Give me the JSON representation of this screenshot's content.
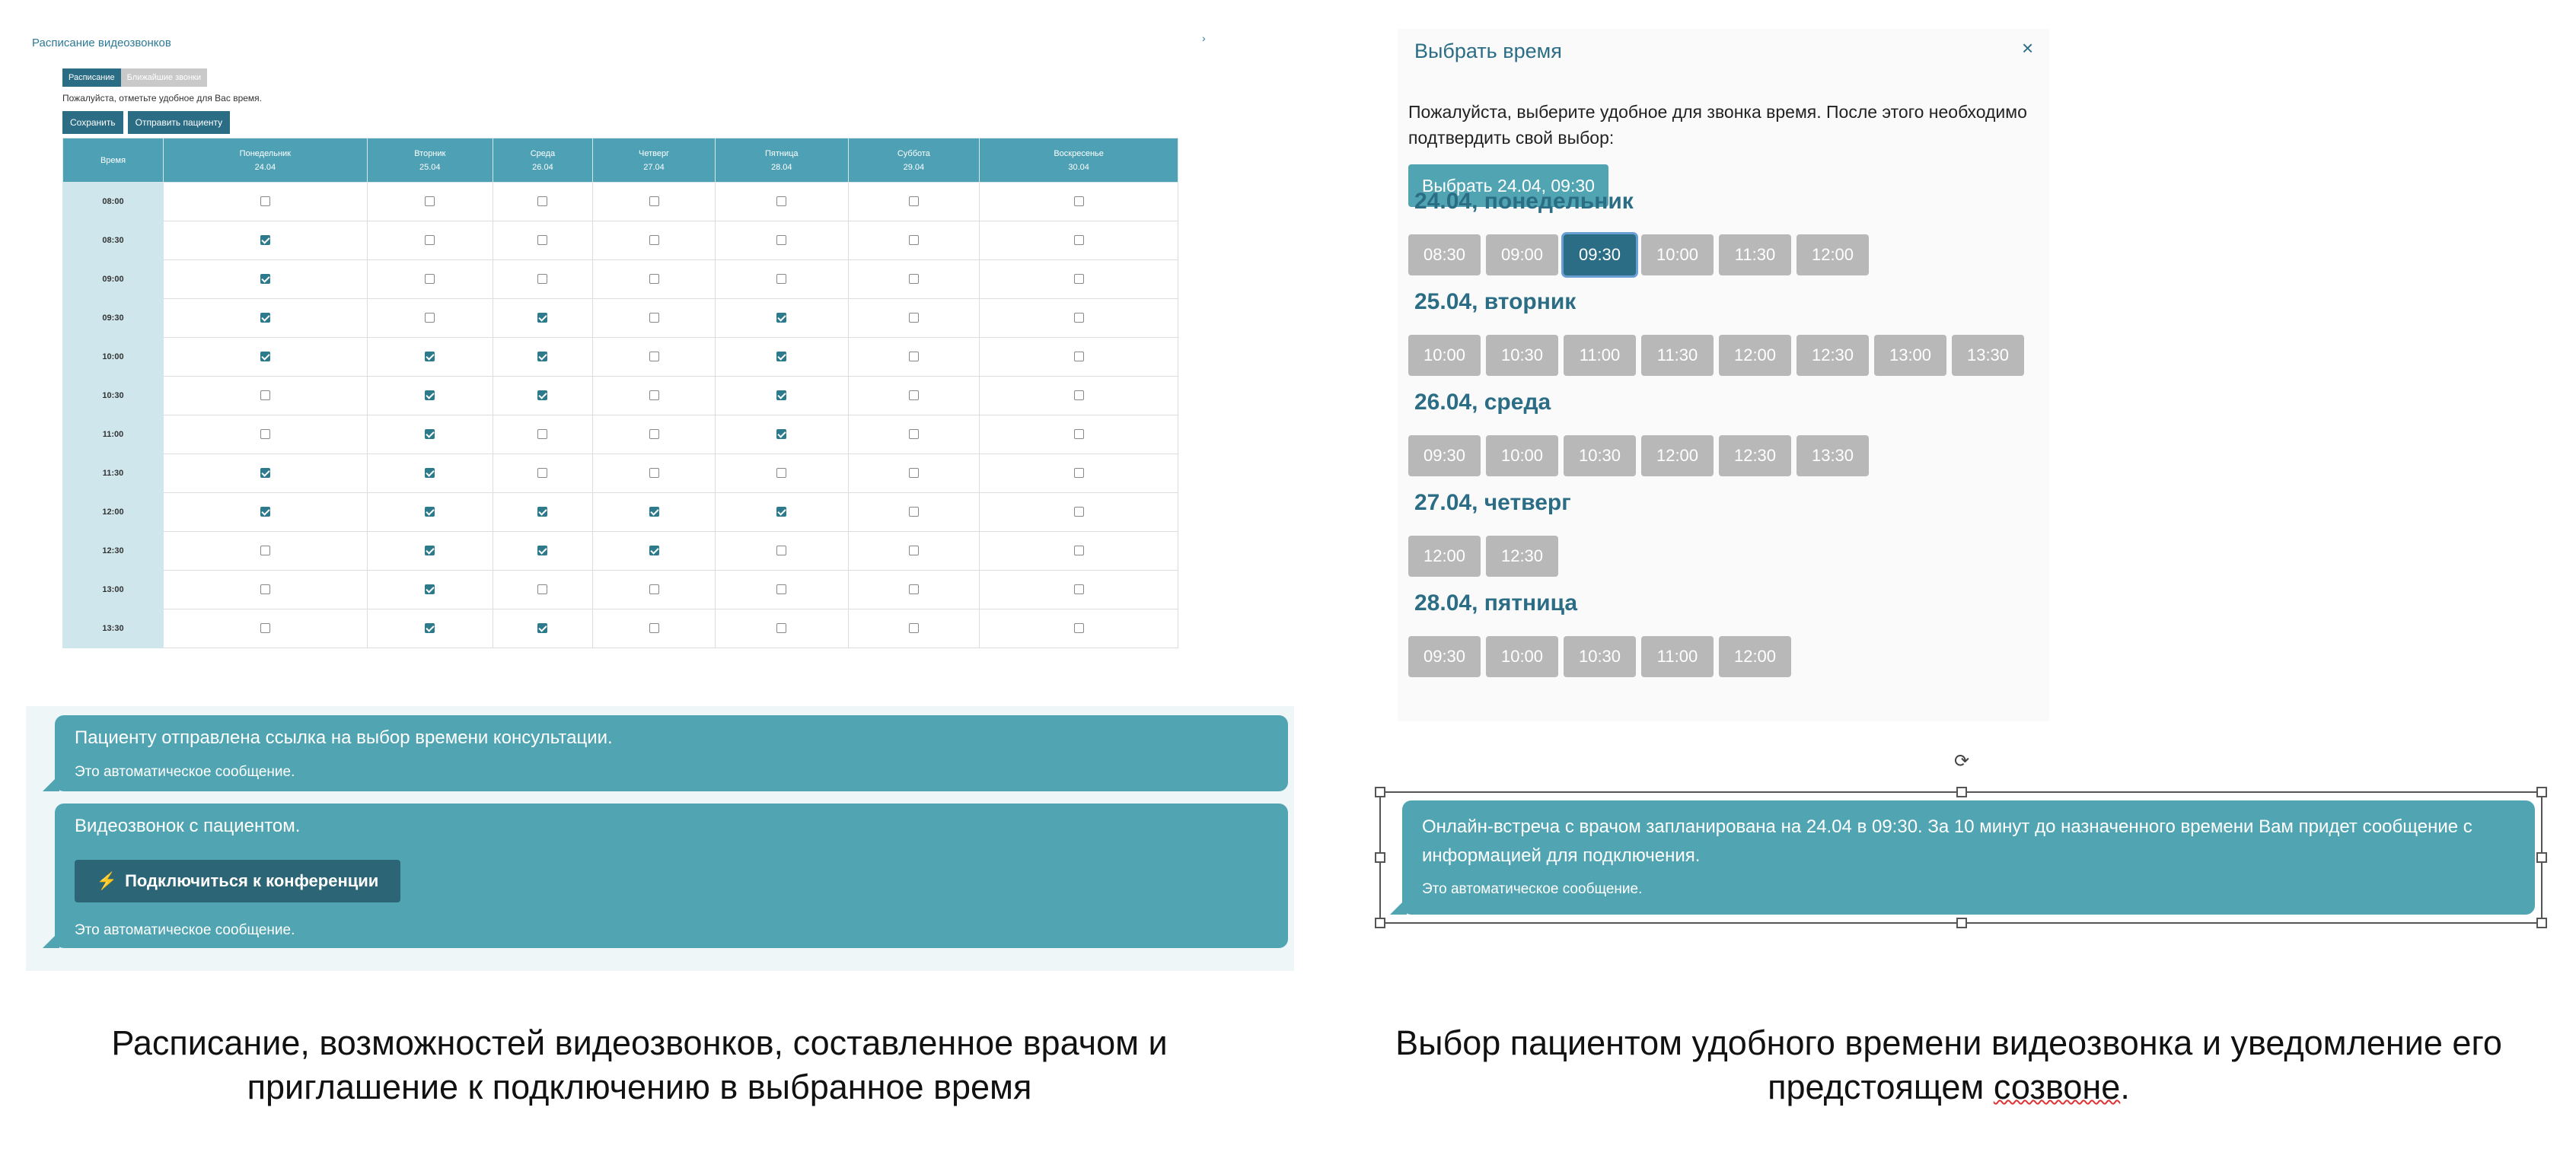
{
  "schedule": {
    "title": "Расписание видеозвонков",
    "arrow": "›",
    "tabs": [
      "Расписание",
      "Ближайшие звонки"
    ],
    "hint": "Пожалуйста, отметьте удобное для Вас время.",
    "save_label": "Сохранить",
    "send_label": "Отправить пациенту",
    "time_header": "Время",
    "days": [
      {
        "name": "Понедельник",
        "date": "24.04"
      },
      {
        "name": "Вторник",
        "date": "25.04"
      },
      {
        "name": "Среда",
        "date": "26.04"
      },
      {
        "name": "Четверг",
        "date": "27.04"
      },
      {
        "name": "Пятница",
        "date": "28.04"
      },
      {
        "name": "Суббота",
        "date": "29.04"
      },
      {
        "name": "Воскресенье",
        "date": "30.04"
      }
    ],
    "rows": [
      {
        "time": "08:00",
        "checks": [
          0,
          0,
          0,
          0,
          0,
          0,
          0
        ]
      },
      {
        "time": "08:30",
        "checks": [
          1,
          0,
          0,
          0,
          0,
          0,
          0
        ]
      },
      {
        "time": "09:00",
        "checks": [
          1,
          0,
          0,
          0,
          0,
          0,
          0
        ]
      },
      {
        "time": "09:30",
        "checks": [
          1,
          0,
          1,
          0,
          1,
          0,
          0
        ]
      },
      {
        "time": "10:00",
        "checks": [
          1,
          1,
          1,
          0,
          1,
          0,
          0
        ]
      },
      {
        "time": "10:30",
        "checks": [
          0,
          1,
          1,
          0,
          1,
          0,
          0
        ]
      },
      {
        "time": "11:00",
        "checks": [
          0,
          1,
          0,
          0,
          1,
          0,
          0
        ]
      },
      {
        "time": "11:30",
        "checks": [
          1,
          1,
          0,
          0,
          0,
          0,
          0
        ]
      },
      {
        "time": "12:00",
        "checks": [
          1,
          1,
          1,
          1,
          1,
          0,
          0
        ]
      },
      {
        "time": "12:30",
        "checks": [
          0,
          1,
          1,
          1,
          0,
          0,
          0
        ]
      },
      {
        "time": "13:00",
        "checks": [
          0,
          1,
          0,
          0,
          0,
          0,
          0
        ]
      },
      {
        "time": "13:30",
        "checks": [
          0,
          1,
          1,
          0,
          0,
          0,
          0
        ]
      }
    ]
  },
  "chat_left": {
    "msg1": "Пациенту отправлена ссылка на выбор времени консультации.",
    "auto": "Это автоматическое сообщение.",
    "msg2": "Видеозвонок с пациентом.",
    "connect_icon": "lightning-icon",
    "connect_label": "Подключиться к конференции"
  },
  "time_picker": {
    "title": "Выбрать время",
    "close": "×",
    "description": "Пожалуйста, выберите удобное для звонка время. После этого необходимо подтвердить свой выбор:",
    "select_label": "Выбрать 24.04, 09:30",
    "selected_slot": "09:30",
    "days": [
      {
        "label": "24.04, понедельник",
        "slots": [
          "08:30",
          "09:00",
          "09:30",
          "10:00",
          "11:30",
          "12:00"
        ]
      },
      {
        "label": "25.04, вторник",
        "slots": [
          "10:00",
          "10:30",
          "11:00",
          "11:30",
          "12:00",
          "12:30",
          "13:00",
          "13:30"
        ]
      },
      {
        "label": "26.04, среда",
        "slots": [
          "09:30",
          "10:00",
          "10:30",
          "12:00",
          "12:30",
          "13:30"
        ]
      },
      {
        "label": "27.04, четверг",
        "slots": [
          "12:00",
          "12:30"
        ]
      },
      {
        "label": "28.04, пятница",
        "slots": [
          "09:30",
          "10:00",
          "10:30",
          "11:00",
          "12:00"
        ]
      }
    ]
  },
  "notice": {
    "message": "Онлайн-встреча с врачом запланирована на 24.04 в 09:30. За 10 минут до назначенного времени Вам придет сообщение с информацией для подключения.",
    "auto": "Это автоматическое сообщение.",
    "rotate_icon": "rotate-icon"
  },
  "captions": {
    "left_line1": "Расписание, возможностей видеозвонков, составленное врачом и",
    "left_line2": "приглашение к подключению в выбранное время",
    "right_line1": "Выбор пациентом удобного времени видеозвонка и уведомление его",
    "right_line2_a": "предстоящем ",
    "right_line2_b": "созвоне",
    "right_line2_c": "."
  },
  "colors": {
    "accent": "#2c6d86",
    "bubble": "#51a5b3",
    "slot": "#b8b8b8"
  }
}
